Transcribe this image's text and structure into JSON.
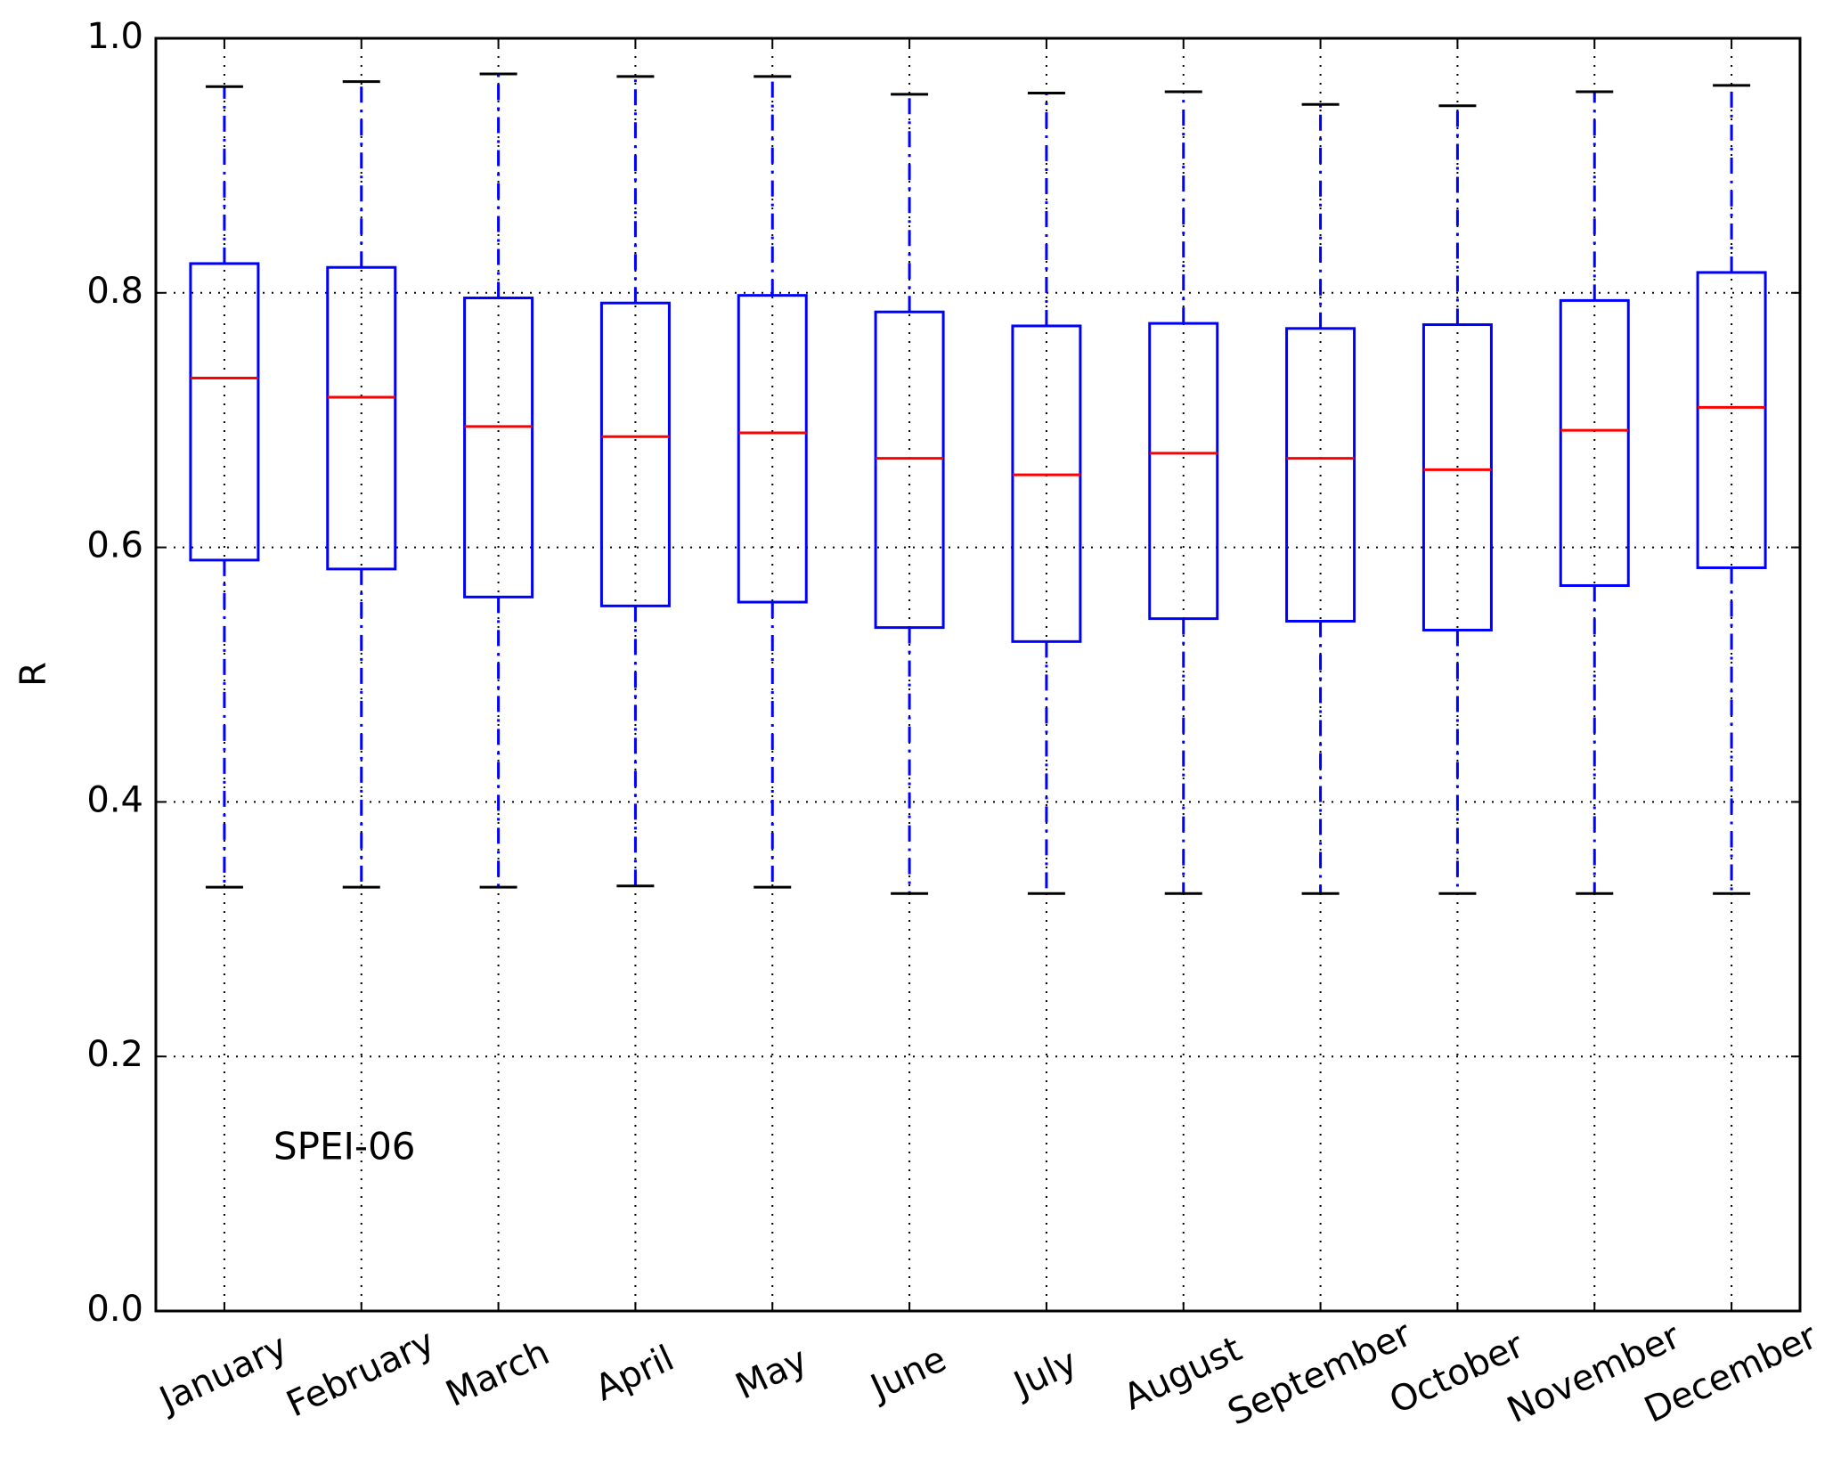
{
  "chart_data": {
    "type": "box",
    "ylabel": "R",
    "annotation": "SPEI-06",
    "categories": [
      "January",
      "February",
      "March",
      "April",
      "May",
      "June",
      "July",
      "August",
      "September",
      "October",
      "November",
      "December"
    ],
    "whisker_low": [
      0.333,
      0.333,
      0.333,
      0.334,
      0.333,
      0.328,
      0.328,
      0.328,
      0.328,
      0.328,
      0.328,
      0.328
    ],
    "q1": [
      0.59,
      0.583,
      0.561,
      0.554,
      0.557,
      0.537,
      0.526,
      0.544,
      0.542,
      0.535,
      0.57,
      0.584
    ],
    "median": [
      0.733,
      0.718,
      0.695,
      0.687,
      0.69,
      0.67,
      0.657,
      0.674,
      0.67,
      0.661,
      0.692,
      0.71
    ],
    "q3": [
      0.823,
      0.82,
      0.796,
      0.792,
      0.798,
      0.785,
      0.774,
      0.776,
      0.772,
      0.775,
      0.794,
      0.816
    ],
    "whisker_high": [
      0.962,
      0.966,
      0.972,
      0.97,
      0.97,
      0.956,
      0.957,
      0.958,
      0.948,
      0.947,
      0.958,
      0.963
    ],
    "box_color": "#0000ff",
    "median_color": "#ff0000",
    "cap_color": "#000000",
    "ylim": [
      0,
      1
    ],
    "yticks": [
      {
        "value": 0,
        "label": "0.0"
      },
      0.2,
      0.4,
      0.6,
      0.8,
      {
        "value": 1,
        "label": "1.0"
      }
    ],
    "grid": true
  }
}
